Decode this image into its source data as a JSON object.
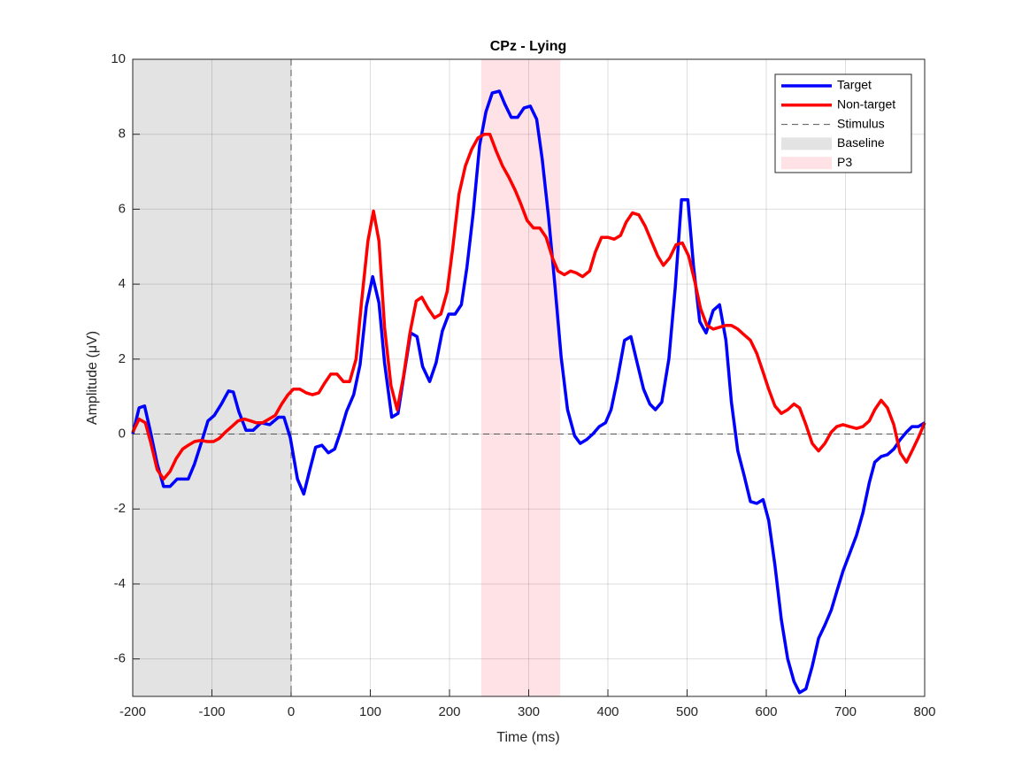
{
  "chart_data": {
    "type": "line",
    "title": "CPz - Lying",
    "xlabel": "Time (ms)",
    "ylabel": "Amplitude (μV)",
    "xlim": [
      -200,
      800
    ],
    "ylim": [
      -7,
      10
    ],
    "xticks": [
      -200,
      -100,
      0,
      100,
      200,
      300,
      400,
      500,
      600,
      700,
      800
    ],
    "yticks": [
      -6,
      -4,
      -2,
      0,
      2,
      4,
      6,
      8,
      10
    ],
    "grid": true,
    "legend": "upper right",
    "regions": [
      {
        "name": "Baseline",
        "x": [
          -200,
          0
        ],
        "color": "#e3e3e3"
      },
      {
        "name": "P3",
        "x": [
          240,
          340
        ],
        "color": "#ffe2e6"
      }
    ],
    "stimulus": {
      "name": "Stimulus",
      "x": 0,
      "color": "#555555"
    },
    "series": [
      {
        "name": "Target",
        "color": "#0000ff",
        "x": [
          -200,
          -192,
          -185,
          -178,
          -169,
          -161,
          -153,
          -144,
          -130,
          -122,
          -113,
          -105,
          -97,
          -88,
          -79,
          -73,
          -66,
          -57,
          -48,
          -38,
          -27,
          -16,
          -9,
          -1,
          8,
          16,
          23,
          31,
          39,
          47,
          55,
          63,
          70,
          79,
          87,
          95,
          103,
          111,
          118,
          127,
          135,
          143,
          151,
          159,
          166,
          175,
          183,
          191,
          199,
          207,
          215,
          222,
          230,
          238,
          246,
          254,
          263,
          270,
          278,
          286,
          294,
          302,
          310,
          317,
          325,
          333,
          341,
          349,
          358,
          365,
          373,
          381,
          389,
          397,
          404,
          412,
          421,
          429,
          437,
          445,
          453,
          460,
          468,
          477,
          485,
          493,
          501,
          508,
          516,
          524,
          533,
          541,
          549,
          556,
          564,
          572,
          580,
          588,
          596,
          603,
          611,
          619,
          627,
          635,
          642,
          650,
          658,
          666,
          674,
          682,
          689,
          697,
          705,
          714,
          722,
          730,
          737,
          745,
          753,
          761,
          769,
          777,
          784,
          792,
          800
        ],
        "values": [
          0,
          0.7,
          0.75,
          0.1,
          -0.8,
          -1.4,
          -1.4,
          -1.2,
          -1.2,
          -0.8,
          -0.2,
          0.35,
          0.5,
          0.8,
          1.15,
          1.12,
          0.6,
          0.1,
          0.1,
          0.3,
          0.25,
          0.45,
          0.45,
          -0.1,
          -1.2,
          -1.6,
          -1.0,
          -0.35,
          -0.3,
          -0.5,
          -0.4,
          0.1,
          0.6,
          1.05,
          1.85,
          3.4,
          4.2,
          3.5,
          1.9,
          0.45,
          0.55,
          1.65,
          2.7,
          2.6,
          1.8,
          1.4,
          1.9,
          2.75,
          3.2,
          3.2,
          3.45,
          4.45,
          5.9,
          7.7,
          8.6,
          9.1,
          9.15,
          8.8,
          8.45,
          8.45,
          8.7,
          8.75,
          8.4,
          7.35,
          5.8,
          4.0,
          2.05,
          0.65,
          -0.05,
          -0.25,
          -0.15,
          0,
          0.2,
          0.3,
          0.65,
          1.45,
          2.5,
          2.6,
          1.9,
          1.2,
          0.8,
          0.65,
          0.85,
          2.0,
          3.9,
          6.25,
          6.25,
          4.5,
          3.0,
          2.7,
          3.3,
          3.45,
          2.5,
          0.85,
          -0.45,
          -1.1,
          -1.8,
          -1.85,
          -1.75,
          -2.3,
          -3.5,
          -4.95,
          -6.0,
          -6.6,
          -6.9,
          -6.8,
          -6.2,
          -5.45,
          -5.1,
          -4.7,
          -4.2,
          -3.65,
          -3.2,
          -2.7,
          -2.1,
          -1.3,
          -0.75,
          -0.6,
          -0.55,
          -0.4,
          -0.15,
          0.05,
          0.2,
          0.2,
          0.3
        ]
      },
      {
        "name": "Non-target",
        "color": "#ff0000",
        "x": [
          -200,
          -192,
          -184,
          -177,
          -169,
          -161,
          -153,
          -145,
          -137,
          -130,
          -122,
          -114,
          -106,
          -98,
          -91,
          -83,
          -75,
          -67,
          -59,
          -51,
          -44,
          -36,
          -28,
          -20,
          -12,
          -4,
          3,
          11,
          19,
          27,
          35,
          42,
          50,
          58,
          66,
          74,
          82,
          89,
          97,
          104,
          111,
          118,
          126,
          134,
          142,
          150,
          158,
          165,
          173,
          181,
          189,
          197,
          204,
          212,
          220,
          228,
          236,
          244,
          251,
          259,
          267,
          275,
          283,
          290,
          298,
          306,
          314,
          322,
          330,
          337,
          345,
          353,
          360,
          368,
          377,
          384,
          392,
          400,
          408,
          416,
          423,
          431,
          439,
          447,
          455,
          463,
          470,
          478,
          486,
          494,
          502,
          510,
          517,
          525,
          533,
          541,
          549,
          556,
          564,
          572,
          580,
          588,
          596,
          603,
          611,
          619,
          627,
          635,
          642,
          650,
          658,
          666,
          674,
          682,
          689,
          697,
          705,
          714,
          722,
          730,
          737,
          745,
          753,
          761,
          769,
          777,
          784,
          792,
          800
        ],
        "values": [
          0.05,
          0.4,
          0.3,
          -0.25,
          -0.95,
          -1.2,
          -1.0,
          -0.65,
          -0.4,
          -0.3,
          -0.2,
          -0.17,
          -0.2,
          -0.2,
          -0.12,
          0.05,
          0.2,
          0.35,
          0.4,
          0.35,
          0.3,
          0.3,
          0.4,
          0.5,
          0.8,
          1.05,
          1.2,
          1.2,
          1.1,
          1.05,
          1.1,
          1.35,
          1.6,
          1.6,
          1.4,
          1.4,
          2.0,
          3.55,
          5.15,
          5.95,
          5.15,
          2.85,
          1.3,
          0.65,
          1.55,
          2.7,
          3.55,
          3.65,
          3.35,
          3.1,
          3.2,
          3.8,
          4.95,
          6.4,
          7.15,
          7.6,
          7.9,
          8.0,
          8.0,
          7.55,
          7.15,
          6.85,
          6.5,
          6.15,
          5.7,
          5.5,
          5.5,
          5.25,
          4.7,
          4.35,
          4.25,
          4.35,
          4.3,
          4.2,
          4.35,
          4.85,
          5.25,
          5.25,
          5.2,
          5.3,
          5.65,
          5.9,
          5.85,
          5.55,
          5.15,
          4.75,
          4.5,
          4.7,
          5.05,
          5.1,
          4.75,
          4.05,
          3.35,
          2.9,
          2.8,
          2.85,
          2.9,
          2.9,
          2.8,
          2.65,
          2.5,
          2.15,
          1.65,
          1.2,
          0.75,
          0.55,
          0.65,
          0.8,
          0.7,
          0.25,
          -0.25,
          -0.45,
          -0.25,
          0.05,
          0.2,
          0.25,
          0.2,
          0.15,
          0.2,
          0.35,
          0.65,
          0.9,
          0.7,
          0.25,
          -0.5,
          -0.75,
          -0.45,
          -0.1,
          0.3
        ]
      }
    ]
  }
}
